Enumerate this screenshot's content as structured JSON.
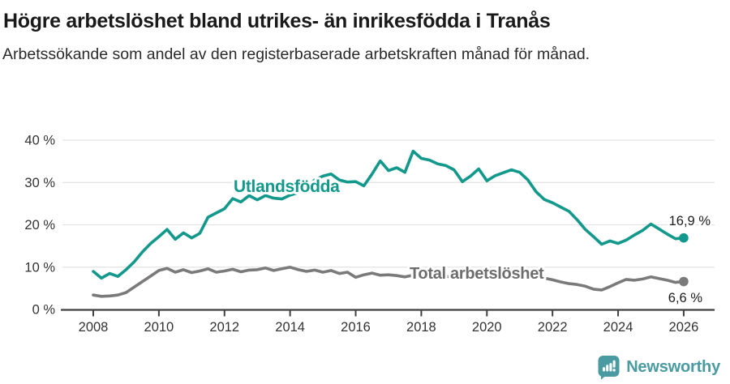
{
  "header": {
    "title": "Högre arbetslöshet bland utrikes- än inrikesfödda i Tranås",
    "subtitle": "Arbetssökande som andel av den registerbaserade arbetskraften månad för månad."
  },
  "footer": {
    "brand": "Newsworthy"
  },
  "colors": {
    "teal_line": "#12998b",
    "gray_line": "#7a7a7a",
    "gray_label": "#6d6d6d",
    "grid": "#e3e3e3",
    "axis": "#414141",
    "tick_text": "#333333",
    "end_label_text": "#1c1c1c",
    "logo_teal": "#4a9ba1",
    "background": "#ffffff"
  },
  "chart_data": {
    "type": "line",
    "title": "Högre arbetslöshet bland utrikes- än inrikesfödda i Tranås",
    "subtitle": "Arbetssökande som andel av den registerbaserade arbetskraften månad för månad.",
    "xlabel": "",
    "ylabel": "",
    "unit": "%",
    "grid": "horizontal",
    "legend_position": "inline-labels",
    "xlim": [
      2007,
      2027
    ],
    "ylim": [
      0,
      40
    ],
    "x_ticks": [
      2008,
      2010,
      2012,
      2014,
      2016,
      2018,
      2020,
      2022,
      2024,
      2026
    ],
    "x_tick_labels": [
      "2008",
      "2010",
      "2012",
      "2014",
      "2016",
      "2018",
      "2020",
      "2022",
      "2024",
      "2026"
    ],
    "y_ticks": [
      0,
      10,
      20,
      30,
      40
    ],
    "y_tick_labels": [
      "0 %",
      "10 %",
      "20 %",
      "30 %",
      "40 %"
    ],
    "series": [
      {
        "name": "Utlandsfödda",
        "color": "#12998b",
        "end_label": "16,9 %",
        "end_value": 16.9,
        "x": [
          2008.0,
          2008.25,
          2008.5,
          2008.75,
          2009.0,
          2009.25,
          2009.5,
          2009.75,
          2010.0,
          2010.25,
          2010.5,
          2010.75,
          2011.0,
          2011.25,
          2011.5,
          2011.75,
          2012.0,
          2012.25,
          2012.5,
          2012.75,
          2013.0,
          2013.25,
          2013.5,
          2013.75,
          2014.0,
          2014.25,
          2014.5,
          2014.75,
          2015.0,
          2015.25,
          2015.5,
          2015.75,
          2016.0,
          2016.25,
          2016.5,
          2016.75,
          2017.0,
          2017.25,
          2017.5,
          2017.75,
          2018.0,
          2018.25,
          2018.5,
          2018.75,
          2019.0,
          2019.25,
          2019.5,
          2019.75,
          2020.0,
          2020.25,
          2020.5,
          2020.75,
          2021.0,
          2021.25,
          2021.5,
          2021.75,
          2022.0,
          2022.25,
          2022.5,
          2022.75,
          2023.0,
          2023.25,
          2023.5,
          2023.75,
          2024.0,
          2024.25,
          2024.5,
          2024.75,
          2025.0,
          2025.25,
          2025.5,
          2025.75,
          2026.0
        ],
        "values": [
          9.0,
          7.4,
          8.5,
          7.8,
          9.4,
          11.3,
          13.6,
          15.6,
          17.2,
          18.9,
          16.6,
          18.1,
          16.9,
          18.0,
          21.8,
          22.8,
          23.8,
          26.2,
          25.4,
          26.9,
          25.9,
          26.9,
          26.3,
          26.1,
          27.0,
          27.6,
          29.0,
          30.6,
          31.5,
          32.0,
          30.6,
          30.1,
          30.2,
          29.2,
          32.0,
          35.1,
          32.8,
          33.5,
          32.4,
          37.4,
          35.7,
          35.3,
          34.4,
          34.0,
          33.0,
          30.2,
          31.5,
          33.2,
          30.4,
          31.6,
          32.3,
          33.0,
          32.4,
          30.6,
          27.8,
          26.0,
          25.2,
          24.2,
          23.2,
          21.2,
          18.9,
          17.2,
          15.4,
          16.2,
          15.6,
          16.4,
          17.6,
          18.7,
          20.2,
          19.0,
          17.8,
          16.7,
          16.9
        ]
      },
      {
        "name": "Total arbetslöshet",
        "color": "#7a7a7a",
        "end_label": "6,6 %",
        "end_value": 6.6,
        "x": [
          2008.0,
          2008.25,
          2008.5,
          2008.75,
          2009.0,
          2009.25,
          2009.5,
          2009.75,
          2010.0,
          2010.25,
          2010.5,
          2010.75,
          2011.0,
          2011.25,
          2011.5,
          2011.75,
          2012.0,
          2012.25,
          2012.5,
          2012.75,
          2013.0,
          2013.25,
          2013.5,
          2013.75,
          2014.0,
          2014.25,
          2014.5,
          2014.75,
          2015.0,
          2015.25,
          2015.5,
          2015.75,
          2016.0,
          2016.25,
          2016.5,
          2016.75,
          2017.0,
          2017.25,
          2017.5,
          2017.75,
          2018.0,
          2018.25,
          2018.5,
          2018.75,
          2019.0,
          2019.25,
          2019.5,
          2019.75,
          2020.0,
          2020.25,
          2020.5,
          2020.75,
          2021.0,
          2021.25,
          2021.5,
          2021.75,
          2022.0,
          2022.25,
          2022.5,
          2022.75,
          2023.0,
          2023.25,
          2023.5,
          2023.75,
          2024.0,
          2024.25,
          2024.5,
          2024.75,
          2025.0,
          2025.25,
          2025.5,
          2025.75,
          2026.0
        ],
        "values": [
          3.4,
          3.1,
          3.2,
          3.4,
          4.0,
          5.3,
          6.6,
          7.9,
          9.2,
          9.7,
          8.8,
          9.4,
          8.7,
          9.1,
          9.6,
          8.8,
          9.1,
          9.5,
          8.9,
          9.3,
          9.4,
          9.8,
          9.2,
          9.6,
          10.0,
          9.4,
          9.0,
          9.3,
          8.8,
          9.2,
          8.5,
          8.8,
          7.6,
          8.2,
          8.6,
          8.1,
          8.2,
          8.0,
          7.7,
          8.1,
          8.0,
          7.9,
          7.7,
          7.8,
          7.6,
          7.7,
          7.8,
          8.0,
          8.3,
          9.0,
          9.1,
          8.8,
          8.5,
          8.2,
          7.8,
          7.4,
          7.0,
          6.5,
          6.1,
          5.9,
          5.5,
          4.8,
          4.6,
          5.4,
          6.3,
          7.1,
          6.9,
          7.2,
          7.7,
          7.3,
          6.9,
          6.4,
          6.6
        ]
      }
    ]
  }
}
